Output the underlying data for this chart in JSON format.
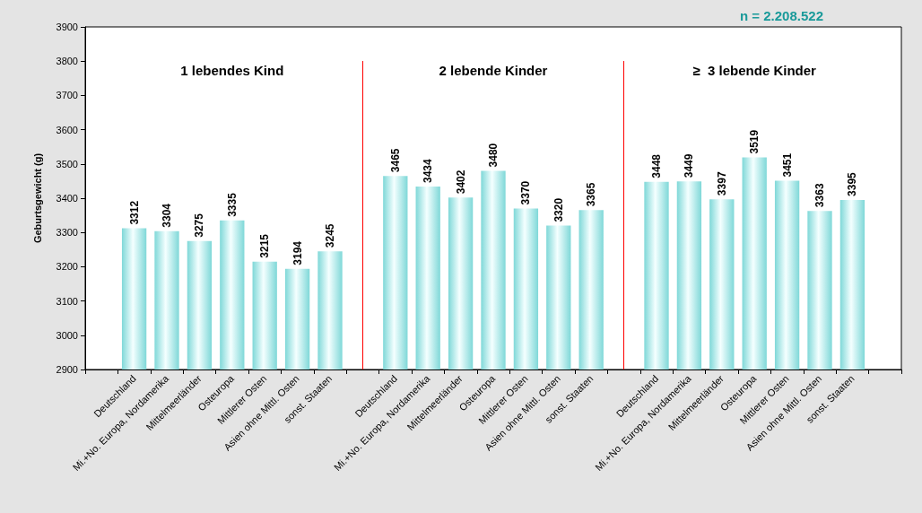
{
  "chart_data": {
    "type": "bar",
    "ylabel": "Geburtsgewicht (g)",
    "categories": [
      null,
      "Deutschland",
      "Mi.+No. Europa, Nordamerika",
      "Mittelmeerländer",
      "Osteuropa",
      "Mittlerer Osten",
      "Asien ohne Mittl. Osten",
      "sonst. Staaten",
      null,
      "Deutschland",
      "Mi.+No. Europa, Nordamerika",
      "Mittelmeerländer",
      "Osteuropa",
      "Mittlerer Osten",
      "Asien ohne Mittl. Osten",
      "sonst. Staaten",
      null,
      "Deutschland",
      "Mi.+No. Europa, Nordamerika",
      "Mittelmeerländer",
      "Osteuropa",
      "Mittlerer Osten",
      "Asien ohne Mittl. Osten",
      "sonst. Staaten",
      null
    ],
    "values": [
      null,
      3312,
      3304,
      3275,
      3335,
      3215,
      3194,
      3245,
      null,
      3465,
      3434,
      3402,
      3480,
      3370,
      3320,
      3365,
      null,
      3448,
      3449,
      3397,
      3519,
      3451,
      3363,
      3395,
      null
    ],
    "color": "#7fd8d8",
    "ylim": [
      2900,
      3900
    ],
    "yticks": [
      2900,
      3000,
      3100,
      3200,
      3300,
      3400,
      3500,
      3600,
      3700,
      3800,
      3900
    ],
    "annotations": [
      "1 lebendes Kind",
      "2 lebende Kinder",
      "≥  3 lebende Kinder",
      "n = 2.208.522"
    ],
    "data_labels": true
  }
}
